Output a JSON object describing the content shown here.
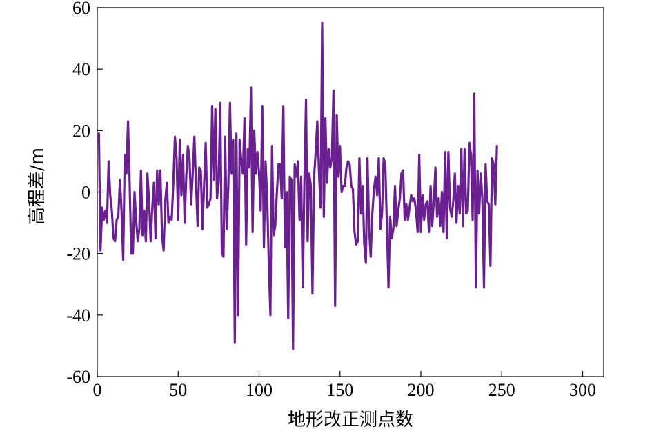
{
  "chart_data": {
    "type": "line",
    "title": "",
    "xlabel": "地形改正测点数",
    "ylabel": "高程差/m",
    "xlim": [
      0,
      313
    ],
    "ylim": [
      -60,
      60
    ],
    "xticks": [
      0,
      50,
      100,
      150,
      200,
      250,
      300
    ],
    "yticks": [
      -60,
      -40,
      -20,
      0,
      20,
      40,
      60
    ],
    "grid": false,
    "legend": "none",
    "series": [
      {
        "color": "#6a2090",
        "y": [
          19,
          -19,
          -5,
          -9,
          -6,
          -10,
          10,
          -1,
          -6,
          -15,
          -16,
          -9,
          -8,
          4,
          -6,
          -22,
          12,
          6,
          23,
          3,
          -20,
          -20,
          0,
          -9,
          -16,
          -12,
          7,
          -14,
          -6,
          -16,
          6,
          -3,
          -16,
          -5,
          3,
          -15,
          7,
          -4,
          7,
          -14,
          -19,
          -3,
          3,
          -10,
          -8,
          -9,
          3,
          18,
          11,
          -9,
          17,
          -1,
          12,
          -10,
          5,
          15,
          11,
          -4,
          6,
          18,
          3,
          -11,
          8,
          7,
          -12,
          2,
          16,
          -5,
          -4,
          -2,
          28,
          4,
          27,
          -2,
          3,
          29,
          -20,
          -21,
          18,
          -12,
          2,
          29,
          6,
          17,
          -49,
          19,
          -40,
          17,
          10,
          6,
          24,
          -17,
          14,
          8,
          34,
          -13,
          20,
          6,
          13,
          6,
          -6,
          28,
          -18,
          10,
          -2,
          -23,
          -40,
          15,
          -14,
          -11,
          0,
          9,
          9,
          -2,
          28,
          -18,
          0,
          -41,
          5,
          4,
          -51,
          9,
          5,
          10,
          -9,
          5,
          -31,
          3,
          30,
          -16,
          6,
          2,
          -33,
          5,
          13,
          23,
          7,
          -5,
          55,
          -8,
          24,
          3,
          14,
          8,
          11,
          33,
          -37,
          25,
          5,
          15,
          0,
          2,
          2,
          8,
          10,
          9,
          2,
          1,
          -13,
          -17,
          -16,
          11,
          -7,
          2,
          -17,
          -23,
          11,
          -12,
          -21,
          -7,
          1,
          5,
          -1,
          11,
          -12,
          -7,
          11,
          9,
          -11,
          -31,
          -8,
          -15,
          -12,
          2,
          -11,
          -6,
          -2,
          6,
          7,
          -9,
          -4,
          -9,
          -5,
          -1,
          -3,
          -2,
          -6,
          -13,
          12,
          -13,
          -1,
          -9,
          -4,
          -3,
          -13,
          2,
          -11,
          -3,
          8,
          -8,
          -2,
          -11,
          0,
          -13,
          13,
          -15,
          13,
          -5,
          -8,
          -3,
          6,
          -10,
          2,
          -7,
          14,
          -11,
          14,
          -7,
          -6,
          16,
          12,
          -9,
          32,
          -31,
          7,
          -7,
          6,
          -2,
          -31,
          9,
          -3,
          -4,
          -24,
          11,
          9,
          -4,
          15
        ]
      }
    ]
  }
}
